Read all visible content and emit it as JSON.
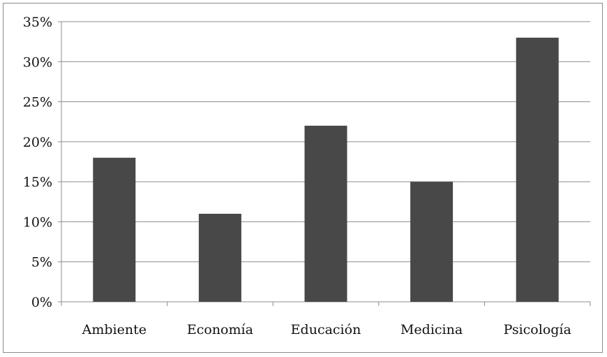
{
  "chart_data": {
    "type": "bar",
    "title": "",
    "xlabel": "",
    "ylabel": "",
    "categories": [
      "Ambiente",
      "Economía",
      "Educación",
      "Medicina",
      "Psicología"
    ],
    "values": [
      18,
      11,
      22,
      15,
      33
    ],
    "y_ticks": [
      "0%",
      "5%",
      "10%",
      "15%",
      "20%",
      "25%",
      "30%",
      "35%"
    ],
    "ylim": [
      0,
      35
    ],
    "y_unit": "%",
    "grid": true,
    "legend": "none",
    "colors": {
      "bar": "#484848",
      "grid": "#8c8c8c",
      "axis": "#8c8c8c",
      "frame": "#8c8c8c"
    }
  }
}
